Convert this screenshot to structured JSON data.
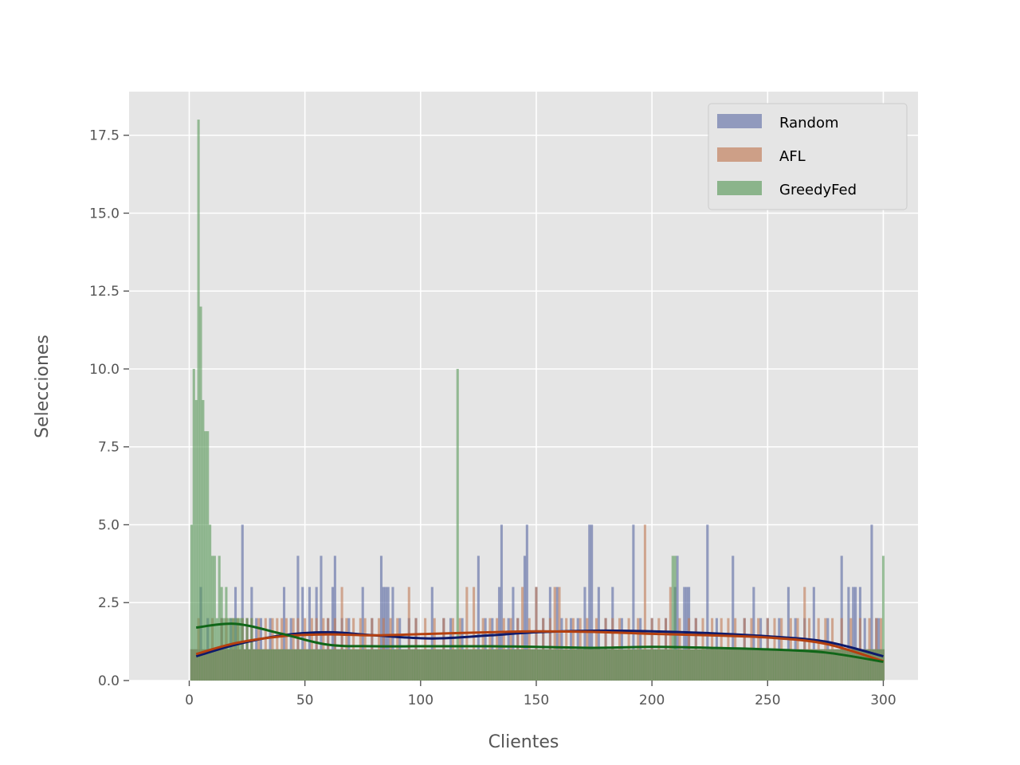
{
  "chart_data": {
    "type": "bar",
    "xlabel": "Clientes",
    "ylabel": "Selecciones",
    "xlim": [
      -26,
      315
    ],
    "ylim": [
      0,
      18.9
    ],
    "x_ticks": [
      0,
      50,
      100,
      150,
      200,
      250,
      300
    ],
    "x_tick_labels": [
      "0",
      "50",
      "100",
      "150",
      "200",
      "250",
      "300"
    ],
    "y_ticks": [
      0,
      2.5,
      5,
      7.5,
      10,
      12.5,
      15,
      17.5
    ],
    "y_tick_labels": [
      "0.0",
      "2.5",
      "5.0",
      "7.5",
      "10.0",
      "12.5",
      "15.0",
      "17.5"
    ],
    "grid": true,
    "legend_position": "top-right",
    "bin_width": 1,
    "series": [
      {
        "name": "Random",
        "color": "#4c5c9c",
        "kde_color": "#0d1a6b",
        "values_default": 1,
        "values_overrides": {
          "5": 3,
          "8": 2,
          "10": 1,
          "14": 2,
          "18": 2,
          "20": 3,
          "23": 5,
          "25": 2,
          "27": 3,
          "29": 2,
          "31": 2,
          "35": 2,
          "41": 3,
          "44": 2,
          "47": 4,
          "49": 3,
          "52": 3,
          "55": 3,
          "57": 4,
          "60": 2,
          "62": 3,
          "63": 4,
          "66": 2,
          "69": 2,
          "75": 3,
          "79": 2,
          "83": 4,
          "84": 3,
          "85": 3,
          "86": 3,
          "88": 3,
          "91": 2,
          "95": 2,
          "98": 2,
          "105": 3,
          "110": 2,
          "113": 2,
          "118": 2,
          "125": 4,
          "128": 2,
          "131": 2,
          "134": 3,
          "135": 5,
          "138": 2,
          "140": 3,
          "142": 2,
          "145": 4,
          "146": 5,
          "150": 3,
          "153": 2,
          "156": 3,
          "159": 3,
          "161": 2,
          "165": 2,
          "168": 2,
          "171": 3,
          "173": 5,
          "174": 5,
          "177": 3,
          "180": 2,
          "183": 3,
          "187": 2,
          "192": 5,
          "195": 2,
          "200": 2,
          "206": 2,
          "210": 3,
          "211": 4,
          "214": 3,
          "215": 3,
          "216": 3,
          "219": 2,
          "224": 5,
          "228": 2,
          "235": 4,
          "240": 2,
          "244": 3,
          "247": 2,
          "250": 2,
          "255": 2,
          "259": 3,
          "262": 2,
          "266": 2,
          "270": 3,
          "276": 2,
          "282": 4,
          "285": 3,
          "287": 3,
          "288": 3,
          "290": 3,
          "292": 2,
          "295": 5,
          "297": 2,
          "298": 2
        }
      },
      {
        "name": "AFL",
        "color": "#c07a55",
        "kde_color": "#b5400f",
        "values_default": 1,
        "values_overrides": {
          "4": 2,
          "10": 2,
          "14": 2,
          "16": 2,
          "19": 2,
          "21": 2,
          "23": 2,
          "25": 2,
          "27": 2,
          "30": 2,
          "33": 2,
          "36": 2,
          "38": 2,
          "40": 2,
          "42": 2,
          "45": 2,
          "47": 2,
          "50": 2,
          "53": 2,
          "55": 2,
          "58": 2,
          "60": 2,
          "63": 2,
          "66": 3,
          "68": 2,
          "71": 2,
          "74": 2,
          "76": 2,
          "79": 2,
          "82": 2,
          "84": 2,
          "87": 2,
          "90": 2,
          "95": 3,
          "98": 2,
          "102": 2,
          "106": 2,
          "110": 2,
          "114": 2,
          "117": 2,
          "120": 3,
          "123": 3,
          "127": 2,
          "130": 2,
          "133": 2,
          "136": 2,
          "139": 2,
          "142": 2,
          "144": 3,
          "147": 2,
          "150": 3,
          "153": 2,
          "156": 2,
          "158": 3,
          "160": 3,
          "163": 2,
          "166": 2,
          "169": 2,
          "172": 2,
          "176": 2,
          "180": 2,
          "183": 2,
          "186": 2,
          "190": 2,
          "194": 2,
          "197": 5,
          "200": 2,
          "203": 2,
          "206": 2,
          "208": 3,
          "212": 2,
          "216": 2,
          "219": 2,
          "222": 2,
          "226": 2,
          "230": 2,
          "233": 2,
          "236": 2,
          "240": 2,
          "243": 2,
          "246": 2,
          "250": 2,
          "253": 2,
          "256": 2,
          "260": 2,
          "263": 2,
          "266": 3,
          "268": 2,
          "272": 2,
          "275": 2,
          "278": 2,
          "282": 2,
          "286": 2,
          "290": 2,
          "294": 2,
          "297": 2,
          "299": 2
        }
      },
      {
        "name": "GreedyFed",
        "color": "#5a9a5a",
        "kde_color": "#106618",
        "values_default": 1,
        "values_overrides": {
          "1": 5,
          "2": 10,
          "3": 9,
          "4": 18,
          "5": 12,
          "6": 9,
          "7": 8,
          "8": 8,
          "9": 5,
          "10": 4,
          "11": 4,
          "12": 2,
          "13": 4,
          "14": 3,
          "15": 2,
          "16": 3,
          "17": 2,
          "18": 2,
          "19": 2,
          "20": 2,
          "21": 2,
          "22": 2,
          "23": 2,
          "25": 2,
          "27": 2,
          "116": 10,
          "209": 4,
          "210": 4,
          "300": 4
        }
      }
    ],
    "kde": {
      "x": [
        3,
        20,
        40,
        60,
        80,
        105,
        130,
        150,
        175,
        200,
        225,
        250,
        275,
        300
      ],
      "Random": [
        0.78,
        1.15,
        1.45,
        1.55,
        1.45,
        1.35,
        1.45,
        1.55,
        1.6,
        1.58,
        1.52,
        1.42,
        1.25,
        0.78
      ],
      "AFL": [
        0.85,
        1.2,
        1.42,
        1.48,
        1.45,
        1.5,
        1.55,
        1.58,
        1.56,
        1.5,
        1.45,
        1.38,
        1.18,
        0.62
      ],
      "GreedyFed": [
        1.7,
        1.82,
        1.5,
        1.15,
        1.1,
        1.1,
        1.1,
        1.08,
        1.05,
        1.08,
        1.05,
        1.0,
        0.9,
        0.6
      ]
    }
  }
}
